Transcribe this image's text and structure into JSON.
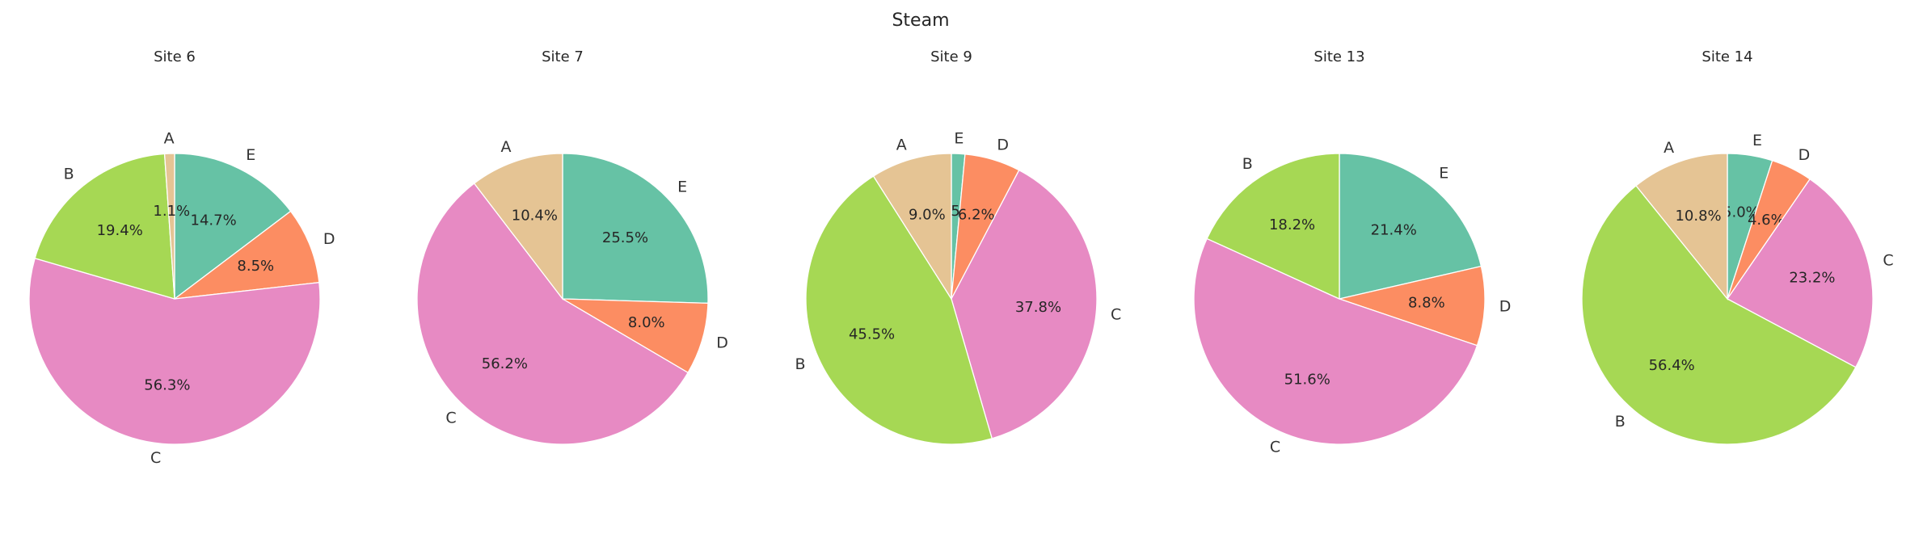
{
  "chart_data": {
    "type": "pie",
    "title": "Steam",
    "colors": {
      "A": "#e5c494",
      "B": "#a6d854",
      "C": "#e78ac3",
      "D": "#fc8d62",
      "E": "#66c2a5"
    },
    "charts": [
      {
        "title": "Site 6",
        "slices": [
          {
            "label": "E",
            "pct_label": "14.7%",
            "value": 14.7
          },
          {
            "label": "D",
            "pct_label": "8.5%",
            "value": 8.5
          },
          {
            "label": "C",
            "pct_label": "56.3%",
            "value": 56.3
          },
          {
            "label": "B",
            "pct_label": "19.4%",
            "value": 19.4
          },
          {
            "label": "A",
            "pct_label": "1.1%",
            "value": 1.1
          }
        ]
      },
      {
        "title": "Site 7",
        "slices": [
          {
            "label": "E",
            "pct_label": "25.5%",
            "value": 25.5
          },
          {
            "label": "D",
            "pct_label": "8.0%",
            "value": 8.0
          },
          {
            "label": "C",
            "pct_label": "56.2%",
            "value": 56.2
          },
          {
            "label": "A",
            "pct_label": "10.4%",
            "value": 10.4
          }
        ]
      },
      {
        "title": "Site 9",
        "slices": [
          {
            "label": "E",
            "pct_label": "1.5%",
            "value": 1.5
          },
          {
            "label": "D",
            "pct_label": "6.2%",
            "value": 6.2
          },
          {
            "label": "C",
            "pct_label": "37.8%",
            "value": 37.8
          },
          {
            "label": "B",
            "pct_label": "45.5%",
            "value": 45.5
          },
          {
            "label": "A",
            "pct_label": "9.0%",
            "value": 9.0
          }
        ]
      },
      {
        "title": "Site 13",
        "slices": [
          {
            "label": "E",
            "pct_label": "21.4%",
            "value": 21.4
          },
          {
            "label": "D",
            "pct_label": "8.8%",
            "value": 8.8
          },
          {
            "label": "C",
            "pct_label": "51.6%",
            "value": 51.6
          },
          {
            "label": "B",
            "pct_label": "18.2%",
            "value": 18.2
          }
        ]
      },
      {
        "title": "Site 14",
        "slices": [
          {
            "label": "E",
            "pct_label": "5.0%",
            "value": 5.0
          },
          {
            "label": "D",
            "pct_label": "4.6%",
            "value": 4.6
          },
          {
            "label": "C",
            "pct_label": "23.2%",
            "value": 23.2
          },
          {
            "label": "B",
            "pct_label": "56.4%",
            "value": 56.4
          },
          {
            "label": "A",
            "pct_label": "10.8%",
            "value": 10.8
          }
        ]
      }
    ]
  }
}
